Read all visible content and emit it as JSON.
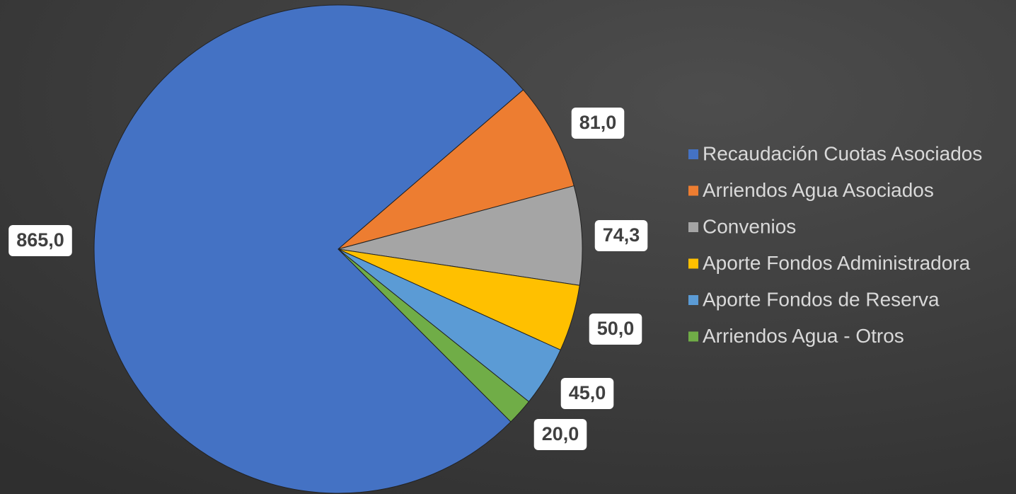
{
  "chart_data": {
    "type": "pie",
    "categories": [
      "Recaudación Cuotas Asociados",
      "Arriendos Agua Asociados",
      "Convenios",
      "Aporte Fondos Administradora",
      "Aporte Fondos de Reserva",
      "Arriendos Agua - Otros"
    ],
    "values": [
      865,
      81,
      74.3,
      50,
      45,
      20
    ],
    "value_labels": [
      "865,0",
      "81,0",
      "74,3",
      "50,0",
      "45,0",
      "20,0"
    ],
    "colors": [
      "#4472c4",
      "#ed7d31",
      "#a5a5a5",
      "#ffc000",
      "#5b9bd5",
      "#70ad47"
    ],
    "legend": "right"
  }
}
